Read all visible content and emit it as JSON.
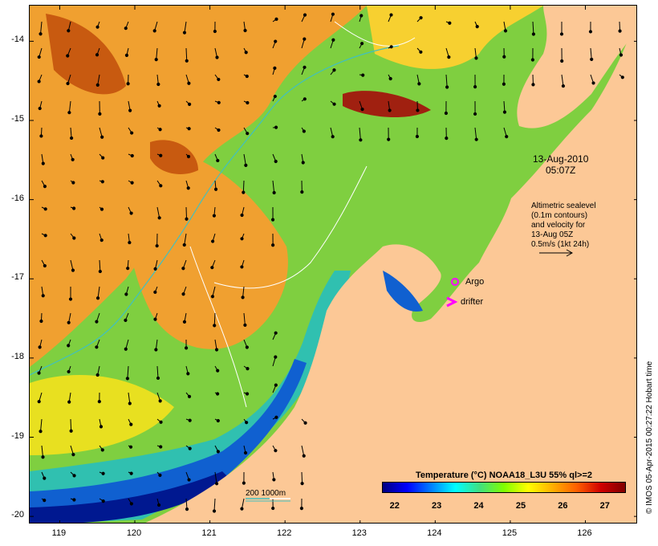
{
  "map": {
    "lon_range": [
      118.6,
      126.7
    ],
    "lat_range": [
      -20.1,
      -13.55
    ],
    "x_ticks": [
      "119",
      "120",
      "121",
      "122",
      "123",
      "124",
      "125",
      "126"
    ],
    "y_ticks": [
      "-14",
      "-15",
      "-16",
      "-17",
      "-18",
      "-19",
      "-20"
    ],
    "land_color": "#fcc896",
    "ocean_base_color": "#7fcf40"
  },
  "annotations": {
    "date": "13-Aug-2010",
    "time": "05:07Z",
    "altimetry_lines": [
      "Altimetric sealevel",
      "(0.1m contours)",
      "and velocity for",
      "13-Aug 05Z",
      "0.5m/s (1kt 24h)"
    ],
    "argo_label": "Argo",
    "drifter_label": "drifter",
    "bathy_label": "200  1000m"
  },
  "colorbar": {
    "title": "Temperature (°C) NOAA18_L3U 55% ql>=2",
    "ticks": [
      "22",
      "23",
      "24",
      "25",
      "26",
      "27"
    ],
    "range": [
      21.7,
      27.5
    ],
    "colors": [
      "#000080",
      "#0000ff",
      "#0080ff",
      "#00ffff",
      "#40e080",
      "#80ff00",
      "#ffff00",
      "#ffb000",
      "#ff6000",
      "#d00000",
      "#800000"
    ]
  },
  "credit": "© IMOS 05-Apr-2015 00:27:22 Hobart time"
}
